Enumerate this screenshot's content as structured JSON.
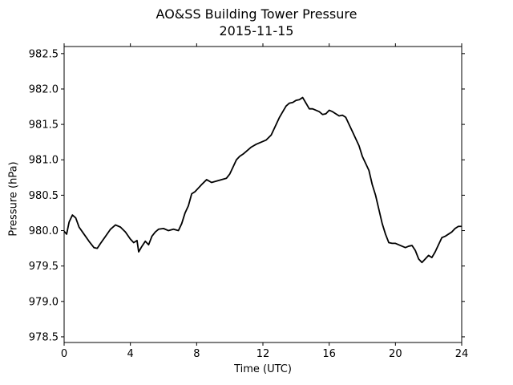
{
  "chart_data": {
    "type": "line",
    "title": "AO&SS Building Tower Pressure",
    "subtitle": "2015-11-15",
    "xlabel": "Time (UTC)",
    "ylabel": "Pressure (hPa)",
    "xlim": [
      0,
      24
    ],
    "ylim": [
      978.42,
      982.6
    ],
    "xticks": [
      0,
      4,
      8,
      12,
      16,
      20,
      24
    ],
    "yticks": [
      978.5,
      979.0,
      979.5,
      980.0,
      980.5,
      981.0,
      981.5,
      982.0,
      982.5
    ],
    "grid": false,
    "line_color": "#000000",
    "series": [
      {
        "x": [
          0,
          0.15,
          0.3,
          0.5,
          0.7,
          0.9,
          1.2,
          1.5,
          1.8,
          2.0,
          2.2,
          2.5,
          2.8,
          3.1,
          3.4,
          3.7,
          4.0,
          4.2,
          4.4,
          4.5,
          4.7,
          4.9,
          5.1,
          5.3,
          5.5,
          5.7,
          6.0,
          6.3,
          6.6,
          6.9,
          7.1,
          7.3,
          7.5,
          7.7,
          7.9,
          8.1,
          8.3,
          8.6,
          8.9,
          9.2,
          9.5,
          9.8,
          10.0,
          10.2,
          10.4,
          10.6,
          10.8,
          11.0,
          11.3,
          11.6,
          11.9,
          12.2,
          12.5,
          12.8,
          13.0,
          13.2,
          13.4,
          13.6,
          13.8,
          14.0,
          14.2,
          14.4,
          14.6,
          14.8,
          15.0,
          15.2,
          15.4,
          15.6,
          15.8,
          16.0,
          16.2,
          16.4,
          16.6,
          16.8,
          17.0,
          17.2,
          17.4,
          17.6,
          17.8,
          18.0,
          18.2,
          18.4,
          18.6,
          18.8,
          19.0,
          19.2,
          19.4,
          19.6,
          19.8,
          20.0,
          20.2,
          20.4,
          20.6,
          20.8,
          21.0,
          21.2,
          21.4,
          21.6,
          21.8,
          22.0,
          22.2,
          22.4,
          22.6,
          22.8,
          23.0,
          23.2,
          23.4,
          23.6,
          23.8,
          24.0
        ],
        "values": [
          979.99,
          979.95,
          980.12,
          980.22,
          980.18,
          980.05,
          979.95,
          979.85,
          979.76,
          979.75,
          979.82,
          979.92,
          980.02,
          980.08,
          980.05,
          979.98,
          979.88,
          979.83,
          979.86,
          979.7,
          979.78,
          979.85,
          979.8,
          979.92,
          979.98,
          980.02,
          980.03,
          980.0,
          980.02,
          980.0,
          980.1,
          980.25,
          980.35,
          980.52,
          980.55,
          980.6,
          980.65,
          980.72,
          980.68,
          980.7,
          980.72,
          980.74,
          980.8,
          980.9,
          981.0,
          981.05,
          981.08,
          981.12,
          981.18,
          981.22,
          981.25,
          981.28,
          981.35,
          981.5,
          981.6,
          981.68,
          981.76,
          981.8,
          981.81,
          981.84,
          981.85,
          981.88,
          981.8,
          981.72,
          981.72,
          981.7,
          981.68,
          981.64,
          981.65,
          981.7,
          981.68,
          981.65,
          981.62,
          981.63,
          981.6,
          981.5,
          981.4,
          981.3,
          981.2,
          981.05,
          980.95,
          980.85,
          980.65,
          980.5,
          980.3,
          980.1,
          979.95,
          979.83,
          979.82,
          979.82,
          979.8,
          979.78,
          979.76,
          979.78,
          979.79,
          979.72,
          979.6,
          979.55,
          979.6,
          979.65,
          979.62,
          979.7,
          979.8,
          979.9,
          979.92,
          979.95,
          979.98,
          980.03,
          980.06,
          980.06
        ]
      }
    ]
  }
}
